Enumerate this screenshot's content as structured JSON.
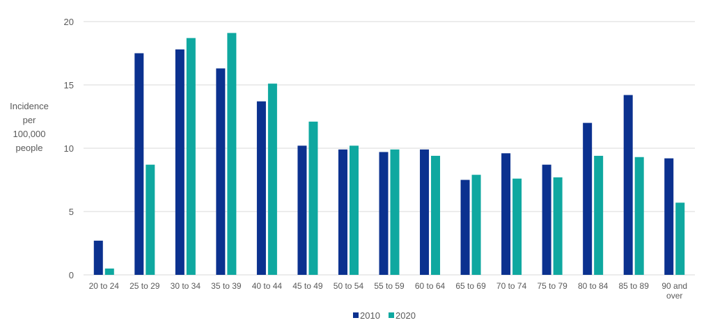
{
  "chart_data": {
    "type": "bar",
    "ylabel": [
      "Incidence",
      "per",
      "100,000",
      "people"
    ],
    "ylim": [
      0,
      20
    ],
    "yticks": [
      0,
      5,
      10,
      15,
      20
    ],
    "grid": true,
    "legend_position": "bottom",
    "categories": [
      [
        "20 to 24"
      ],
      [
        "25 to 29"
      ],
      [
        "30 to 34"
      ],
      [
        "35 to 39"
      ],
      [
        "40 to 44"
      ],
      [
        "45 to 49"
      ],
      [
        "50 to 54"
      ],
      [
        "55 to 59"
      ],
      [
        "60 to 64"
      ],
      [
        "65 to 69"
      ],
      [
        "70 to 74"
      ],
      [
        "75 to 79"
      ],
      [
        "80 to 84"
      ],
      [
        "85 to 89"
      ],
      [
        "90 and",
        "over"
      ]
    ],
    "series": [
      {
        "name": "2010",
        "color": "#0b318f",
        "values": [
          2.7,
          17.5,
          17.8,
          16.3,
          13.7,
          10.2,
          9.9,
          9.7,
          9.9,
          7.5,
          9.6,
          8.7,
          12.0,
          14.2,
          9.2
        ]
      },
      {
        "name": "2020",
        "color": "#0fa8a0",
        "values": [
          0.5,
          8.7,
          18.7,
          19.1,
          15.1,
          12.1,
          10.2,
          9.9,
          9.4,
          7.9,
          7.6,
          7.7,
          9.4,
          9.3,
          5.7
        ]
      }
    ]
  }
}
